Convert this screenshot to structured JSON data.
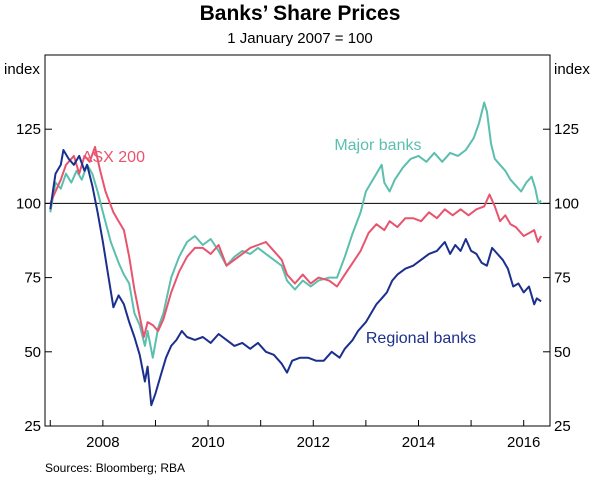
{
  "title": "Banks’ Share Prices",
  "subtitle": "1 January 2007 = 100",
  "source": "Sources:   Bloomberg; RBA",
  "chart_data": {
    "type": "line",
    "title": "Banks’ Share Prices",
    "subtitle": "1 January 2007 = 100",
    "ylabel_left": "index",
    "ylabel_right": "index",
    "ylim": [
      25,
      150
    ],
    "xlim": [
      2006.9,
      2016.5
    ],
    "yticks": [
      25,
      50,
      75,
      100,
      125
    ],
    "xticks": [
      2008,
      2010,
      2012,
      2014,
      2016
    ],
    "reference_line": 100,
    "series": [
      {
        "name": "ASX 200",
        "color": "#e8546e",
        "points": [
          [
            2007.0,
            100
          ],
          [
            2007.1,
            104
          ],
          [
            2007.2,
            108
          ],
          [
            2007.3,
            113
          ],
          [
            2007.45,
            116
          ],
          [
            2007.55,
            110
          ],
          [
            2007.65,
            116
          ],
          [
            2007.75,
            114
          ],
          [
            2007.85,
            119
          ],
          [
            2007.95,
            111
          ],
          [
            2008.05,
            104
          ],
          [
            2008.2,
            97
          ],
          [
            2008.3,
            94
          ],
          [
            2008.4,
            91
          ],
          [
            2008.5,
            82
          ],
          [
            2008.6,
            71
          ],
          [
            2008.7,
            62
          ],
          [
            2008.78,
            55
          ],
          [
            2008.85,
            60
          ],
          [
            2008.95,
            59
          ],
          [
            2009.05,
            57
          ],
          [
            2009.15,
            61
          ],
          [
            2009.3,
            70
          ],
          [
            2009.45,
            77
          ],
          [
            2009.6,
            82
          ],
          [
            2009.75,
            85
          ],
          [
            2009.9,
            85
          ],
          [
            2010.05,
            83
          ],
          [
            2010.2,
            86
          ],
          [
            2010.35,
            79
          ],
          [
            2010.5,
            81
          ],
          [
            2010.65,
            83
          ],
          [
            2010.8,
            85
          ],
          [
            2010.95,
            86
          ],
          [
            2011.1,
            87
          ],
          [
            2011.25,
            84
          ],
          [
            2011.4,
            81
          ],
          [
            2011.5,
            76
          ],
          [
            2011.65,
            73
          ],
          [
            2011.8,
            76
          ],
          [
            2011.95,
            73
          ],
          [
            2012.1,
            75
          ],
          [
            2012.3,
            74
          ],
          [
            2012.45,
            72
          ],
          [
            2012.6,
            76
          ],
          [
            2012.75,
            80
          ],
          [
            2012.9,
            84
          ],
          [
            2013.05,
            90
          ],
          [
            2013.2,
            93
          ],
          [
            2013.35,
            91
          ],
          [
            2013.45,
            94
          ],
          [
            2013.6,
            92
          ],
          [
            2013.75,
            95
          ],
          [
            2013.9,
            95
          ],
          [
            2014.05,
            94
          ],
          [
            2014.2,
            97
          ],
          [
            2014.35,
            95
          ],
          [
            2014.5,
            98
          ],
          [
            2014.65,
            96
          ],
          [
            2014.8,
            98
          ],
          [
            2014.95,
            96
          ],
          [
            2015.1,
            98
          ],
          [
            2015.25,
            99
          ],
          [
            2015.35,
            103
          ],
          [
            2015.45,
            99
          ],
          [
            2015.55,
            94
          ],
          [
            2015.65,
            96
          ],
          [
            2015.75,
            93
          ],
          [
            2015.85,
            92
          ],
          [
            2016.0,
            89
          ],
          [
            2016.1,
            90
          ],
          [
            2016.2,
            91
          ],
          [
            2016.27,
            87
          ],
          [
            2016.33,
            89
          ]
        ]
      },
      {
        "name": "Major banks",
        "color": "#5bbfae",
        "points": [
          [
            2007.0,
            97
          ],
          [
            2007.1,
            107
          ],
          [
            2007.2,
            105
          ],
          [
            2007.3,
            110
          ],
          [
            2007.4,
            107
          ],
          [
            2007.5,
            111
          ],
          [
            2007.6,
            108
          ],
          [
            2007.7,
            113
          ],
          [
            2007.8,
            110
          ],
          [
            2007.9,
            104
          ],
          [
            2008.0,
            97
          ],
          [
            2008.15,
            87
          ],
          [
            2008.3,
            80
          ],
          [
            2008.4,
            76
          ],
          [
            2008.5,
            73
          ],
          [
            2008.6,
            63
          ],
          [
            2008.7,
            59
          ],
          [
            2008.8,
            52
          ],
          [
            2008.85,
            57
          ],
          [
            2008.95,
            48
          ],
          [
            2009.05,
            58
          ],
          [
            2009.15,
            63
          ],
          [
            2009.3,
            75
          ],
          [
            2009.45,
            82
          ],
          [
            2009.6,
            87
          ],
          [
            2009.75,
            89
          ],
          [
            2009.9,
            86
          ],
          [
            2010.05,
            88
          ],
          [
            2010.2,
            84
          ],
          [
            2010.35,
            79
          ],
          [
            2010.5,
            82
          ],
          [
            2010.65,
            84
          ],
          [
            2010.8,
            83
          ],
          [
            2010.95,
            85
          ],
          [
            2011.1,
            83
          ],
          [
            2011.25,
            81
          ],
          [
            2011.4,
            79
          ],
          [
            2011.5,
            74
          ],
          [
            2011.65,
            71
          ],
          [
            2011.8,
            74
          ],
          [
            2011.95,
            72
          ],
          [
            2012.1,
            74
          ],
          [
            2012.3,
            75
          ],
          [
            2012.45,
            75
          ],
          [
            2012.6,
            82
          ],
          [
            2012.75,
            90
          ],
          [
            2012.9,
            97
          ],
          [
            2013.0,
            104
          ],
          [
            2013.1,
            107
          ],
          [
            2013.2,
            110
          ],
          [
            2013.3,
            113
          ],
          [
            2013.35,
            107
          ],
          [
            2013.45,
            104
          ],
          [
            2013.55,
            108
          ],
          [
            2013.7,
            112
          ],
          [
            2013.85,
            115
          ],
          [
            2014.0,
            116
          ],
          [
            2014.15,
            114
          ],
          [
            2014.3,
            117
          ],
          [
            2014.45,
            114
          ],
          [
            2014.6,
            117
          ],
          [
            2014.75,
            116
          ],
          [
            2014.9,
            118
          ],
          [
            2015.05,
            122
          ],
          [
            2015.15,
            127
          ],
          [
            2015.25,
            134
          ],
          [
            2015.3,
            131
          ],
          [
            2015.38,
            120
          ],
          [
            2015.45,
            115
          ],
          [
            2015.55,
            113
          ],
          [
            2015.65,
            111
          ],
          [
            2015.75,
            108
          ],
          [
            2015.85,
            106
          ],
          [
            2015.95,
            104
          ],
          [
            2016.05,
            107
          ],
          [
            2016.15,
            109
          ],
          [
            2016.22,
            105
          ],
          [
            2016.28,
            100
          ],
          [
            2016.33,
            101
          ]
        ]
      },
      {
        "name": "Regional banks",
        "color": "#1b2f8c",
        "points": [
          [
            2007.0,
            98
          ],
          [
            2007.1,
            110
          ],
          [
            2007.2,
            113
          ],
          [
            2007.25,
            118
          ],
          [
            2007.35,
            115
          ],
          [
            2007.45,
            113
          ],
          [
            2007.55,
            116
          ],
          [
            2007.65,
            111
          ],
          [
            2007.7,
            113
          ],
          [
            2007.8,
            106
          ],
          [
            2007.9,
            97
          ],
          [
            2008.0,
            87
          ],
          [
            2008.1,
            76
          ],
          [
            2008.2,
            65
          ],
          [
            2008.3,
            69
          ],
          [
            2008.4,
            66
          ],
          [
            2008.5,
            60
          ],
          [
            2008.6,
            55
          ],
          [
            2008.7,
            49
          ],
          [
            2008.8,
            40
          ],
          [
            2008.85,
            45
          ],
          [
            2008.92,
            32
          ],
          [
            2009.0,
            36
          ],
          [
            2009.1,
            42
          ],
          [
            2009.2,
            48
          ],
          [
            2009.3,
            52
          ],
          [
            2009.4,
            54
          ],
          [
            2009.5,
            57
          ],
          [
            2009.6,
            55
          ],
          [
            2009.75,
            54
          ],
          [
            2009.9,
            55
          ],
          [
            2010.05,
            53
          ],
          [
            2010.2,
            56
          ],
          [
            2010.35,
            54
          ],
          [
            2010.5,
            52
          ],
          [
            2010.65,
            53
          ],
          [
            2010.8,
            51
          ],
          [
            2010.95,
            53
          ],
          [
            2011.1,
            50
          ],
          [
            2011.25,
            49
          ],
          [
            2011.4,
            46
          ],
          [
            2011.5,
            43
          ],
          [
            2011.6,
            47
          ],
          [
            2011.75,
            48
          ],
          [
            2011.9,
            48
          ],
          [
            2012.05,
            47
          ],
          [
            2012.2,
            47
          ],
          [
            2012.35,
            50
          ],
          [
            2012.5,
            48
          ],
          [
            2012.6,
            51
          ],
          [
            2012.75,
            54
          ],
          [
            2012.85,
            57
          ],
          [
            2013.0,
            60
          ],
          [
            2013.1,
            63
          ],
          [
            2013.2,
            66
          ],
          [
            2013.3,
            68
          ],
          [
            2013.4,
            70
          ],
          [
            2013.5,
            74
          ],
          [
            2013.6,
            76
          ],
          [
            2013.75,
            78
          ],
          [
            2013.9,
            79
          ],
          [
            2014.05,
            81
          ],
          [
            2014.2,
            83
          ],
          [
            2014.35,
            84
          ],
          [
            2014.5,
            87
          ],
          [
            2014.6,
            83
          ],
          [
            2014.7,
            86
          ],
          [
            2014.8,
            84
          ],
          [
            2014.9,
            88
          ],
          [
            2015.0,
            84
          ],
          [
            2015.1,
            83
          ],
          [
            2015.2,
            80
          ],
          [
            2015.3,
            79
          ],
          [
            2015.4,
            85
          ],
          [
            2015.5,
            83
          ],
          [
            2015.6,
            81
          ],
          [
            2015.7,
            78
          ],
          [
            2015.8,
            72
          ],
          [
            2015.9,
            73
          ],
          [
            2016.0,
            70
          ],
          [
            2016.1,
            72
          ],
          [
            2016.2,
            66
          ],
          [
            2016.25,
            68
          ],
          [
            2016.33,
            67
          ]
        ]
      }
    ],
    "labels": [
      {
        "series": "ASX 200",
        "text": "ASX 200",
        "x": 2007.6,
        "y": 114
      },
      {
        "series": "Major banks",
        "text": "Major banks",
        "x": 2012.4,
        "y": 118
      },
      {
        "series": "Regional banks",
        "text": "Regional banks",
        "x": 2013.0,
        "y": 53
      }
    ]
  }
}
